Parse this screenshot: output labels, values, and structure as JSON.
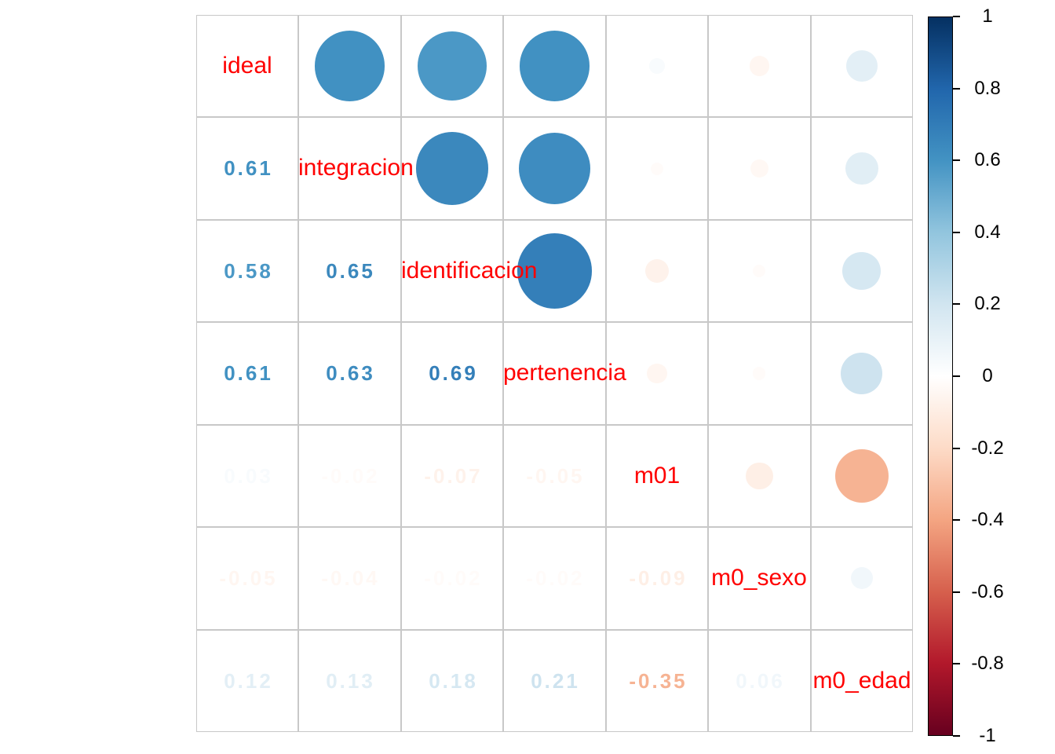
{
  "chart_data": {
    "type": "heatmap",
    "subtype": "correlation-matrix",
    "title": "",
    "variables": [
      "ideal",
      "integracion",
      "identificacion",
      "pertenencia",
      "m01",
      "m0_sexo",
      "m0_edad"
    ],
    "matrix": [
      [
        1.0,
        0.61,
        0.58,
        0.61,
        0.03,
        -0.05,
        0.12
      ],
      [
        0.61,
        1.0,
        0.65,
        0.63,
        -0.02,
        -0.04,
        0.13
      ],
      [
        0.58,
        0.65,
        1.0,
        0.69,
        -0.07,
        -0.02,
        0.18
      ],
      [
        0.61,
        0.63,
        0.69,
        1.0,
        -0.05,
        -0.02,
        0.21
      ],
      [
        0.03,
        -0.02,
        -0.07,
        -0.05,
        1.0,
        -0.09,
        -0.35
      ],
      [
        -0.05,
        -0.04,
        -0.02,
        -0.02,
        -0.09,
        1.0,
        0.06
      ],
      [
        0.12,
        0.13,
        0.18,
        0.21,
        -0.35,
        0.06,
        1.0
      ]
    ],
    "lower_triangle": "numbers",
    "upper_triangle": "circles",
    "diagonal": "variable-names",
    "value_range": [
      -1,
      1
    ],
    "grid": "on",
    "colorbar": {
      "position": "right",
      "tick_labels": [
        "1",
        "0.8",
        "0.6",
        "0.4",
        "0.2",
        "0",
        "-0.2",
        "-0.4",
        "-0.6",
        "-0.8",
        "-1"
      ],
      "tick_values": [
        1,
        0.8,
        0.6,
        0.4,
        0.2,
        0,
        -0.2,
        -0.4,
        -0.6,
        -0.8,
        -1
      ]
    },
    "palette_neg_to_pos": [
      "#67001f",
      "#b2182b",
      "#d6604d",
      "#f4a582",
      "#fddbc7",
      "#ffffff",
      "#d1e5f0",
      "#92c5de",
      "#4393c3",
      "#2166ac",
      "#053061"
    ],
    "colors": {
      "diagonal_label": "#ff0000",
      "grid_line": "#c8c8c8",
      "tick_text": "#000000",
      "background": "#ffffff"
    }
  }
}
